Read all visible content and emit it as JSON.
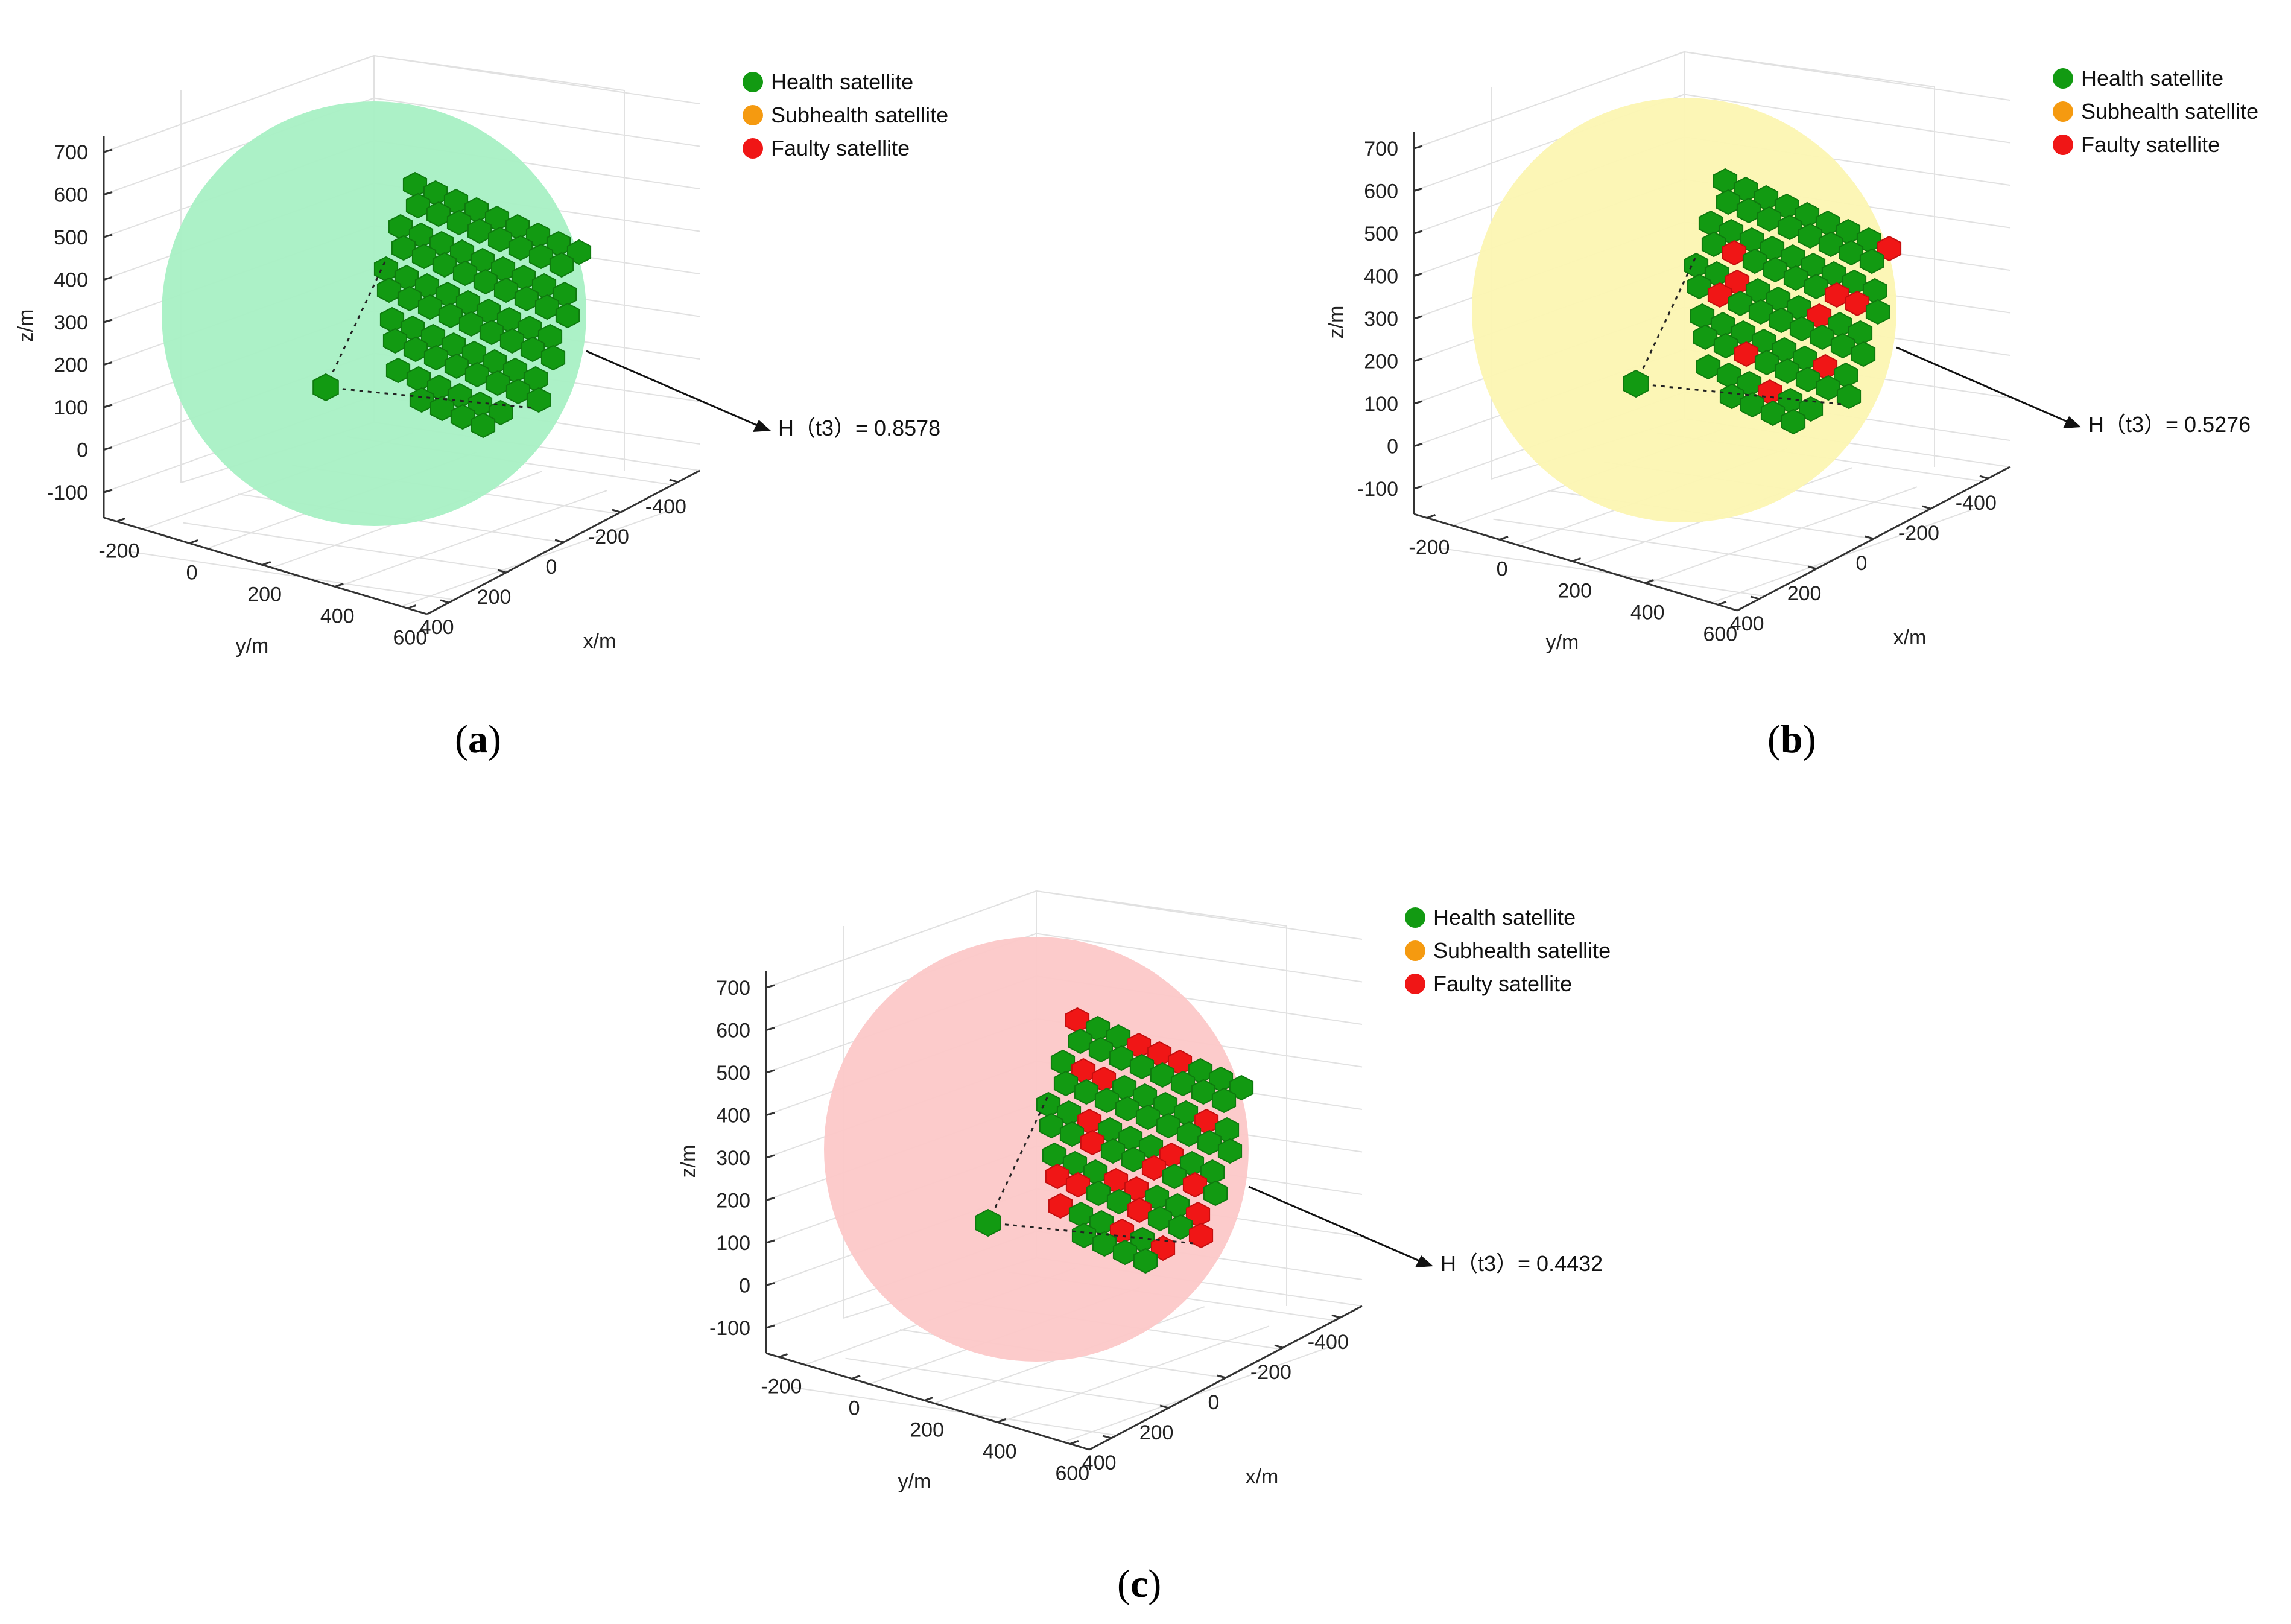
{
  "figure": {
    "panels": [
      {
        "id": "a",
        "caption": {
          "open": "(",
          "letter": "a",
          "close": ")"
        },
        "chart_data": {
          "type": "scatter",
          "title": "",
          "xlabel": "x/m",
          "ylabel": "y/m",
          "zlabel": "z/m",
          "x_ticks": [
            "-400",
            "-200",
            "0",
            "200",
            "400"
          ],
          "y_ticks": [
            "-200",
            "0",
            "200",
            "400",
            "600"
          ],
          "z_ticks": [
            "700",
            "600",
            "500",
            "400",
            "300",
            "200",
            "100",
            "0",
            "-100"
          ],
          "zlim": [
            -150,
            750
          ],
          "sphere_color": "#a8f0c4",
          "legend": [
            {
              "label": "Health satellite",
              "color": "#129a12"
            },
            {
              "label": "Subhealth satellite",
              "color": "#f59a10"
            },
            {
              "label": "Faulty satellite",
              "color": "#f01616"
            }
          ],
          "annotation": "H（t3）= 0.8578",
          "health_index": 0.8578,
          "faulty_satellites": 0
        }
      },
      {
        "id": "b",
        "caption": {
          "open": "(",
          "letter": "b",
          "close": ")"
        },
        "chart_data": {
          "type": "scatter",
          "title": "",
          "xlabel": "x/m",
          "ylabel": "y/m",
          "zlabel": "z/m",
          "x_ticks": [
            "-400",
            "-200",
            "0",
            "200",
            "400"
          ],
          "y_ticks": [
            "-200",
            "0",
            "200",
            "400",
            "600"
          ],
          "z_ticks": [
            "700",
            "600",
            "500",
            "400",
            "300",
            "200",
            "100",
            "0",
            "-100"
          ],
          "zlim": [
            -150,
            750
          ],
          "sphere_color": "#fcf6b2",
          "legend": [
            {
              "label": "Health satellite",
              "color": "#129a12"
            },
            {
              "label": "Subhealth satellite",
              "color": "#f59a10"
            },
            {
              "label": "Faulty satellite",
              "color": "#f01616"
            }
          ],
          "annotation": "H（t3）= 0.5276",
          "health_index": 0.5276,
          "faulty_satellites": 10
        }
      },
      {
        "id": "c",
        "caption": {
          "open": "(",
          "letter": "c",
          "close": ")"
        },
        "chart_data": {
          "type": "scatter",
          "title": "",
          "xlabel": "x/m",
          "ylabel": "y/m",
          "zlabel": "z/m",
          "x_ticks": [
            "-400",
            "-200",
            "0",
            "200",
            "400"
          ],
          "y_ticks": [
            "-200",
            "0",
            "200",
            "400",
            "600"
          ],
          "z_ticks": [
            "700",
            "600",
            "500",
            "400",
            "300",
            "200",
            "100",
            "0",
            "-100"
          ],
          "zlim": [
            -150,
            750
          ],
          "sphere_color": "#fcc8c8",
          "legend": [
            {
              "label": "Health satellite",
              "color": "#129a12"
            },
            {
              "label": "Subhealth satellite",
              "color": "#f59a10"
            },
            {
              "label": "Faulty satellite",
              "color": "#f01616"
            }
          ],
          "annotation": "H（t3）= 0.4432",
          "health_index": 0.4432,
          "faulty_satellites": 22
        }
      }
    ]
  }
}
